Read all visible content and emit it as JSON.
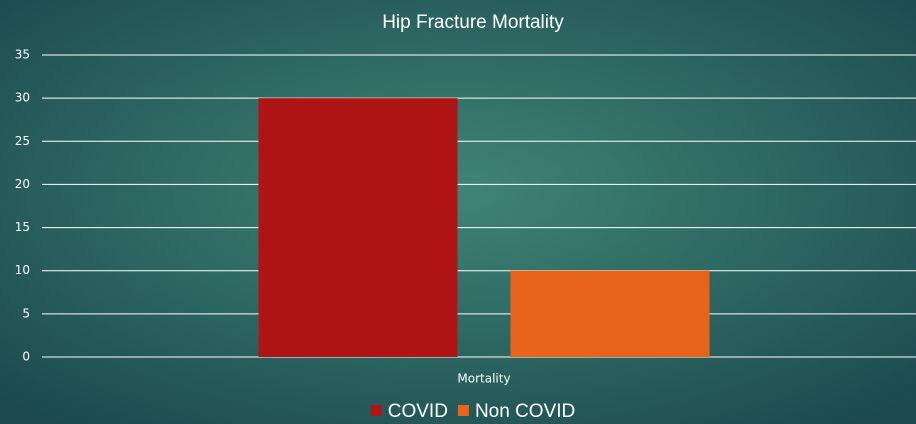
{
  "chart_data": {
    "type": "bar",
    "title": "Hip Fracture Mortality",
    "categories": [
      "Mortality"
    ],
    "series": [
      {
        "name": "COVID",
        "color": "#b01515",
        "values": [
          30
        ]
      },
      {
        "name": "Non COVID",
        "color": "#e8641b",
        "values": [
          10
        ]
      }
    ],
    "ylim": [
      0,
      35
    ],
    "yticks": [
      0,
      5,
      10,
      15,
      20,
      25,
      30,
      35
    ],
    "grid": true,
    "legend": "bottom"
  }
}
